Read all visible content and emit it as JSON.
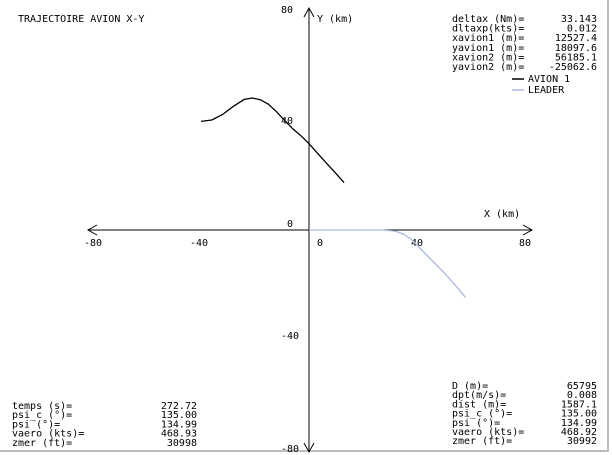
{
  "window": {
    "title": "TRAJECTOIRE AVION X-Y"
  },
  "colors": {
    "background": "#ffffff",
    "axis": "#000000",
    "avion1": "#000000",
    "leader": "#a9b9dd"
  },
  "chart_data": {
    "type": "line",
    "title": "TRAJECTOIRE AVION X-Y",
    "xlabel": "X (km)",
    "ylabel": "Y (km)",
    "xlim": [
      -80,
      80
    ],
    "ylim": [
      -80,
      80
    ],
    "xticks": [
      "-80",
      "-40",
      "0",
      "40",
      "80"
    ],
    "yticks": [
      "80",
      "40",
      "0",
      "-40",
      "-80"
    ],
    "grid": false,
    "legend_position": "top-right",
    "series": [
      {
        "name": "AVION 1",
        "color": "#000000",
        "x": [
          -40,
          -36,
          -32,
          -28,
          -24,
          -21,
          -18,
          -15,
          -12,
          -9,
          -6,
          -3,
          0,
          5,
          10,
          13
        ],
        "y": [
          39.5,
          40,
          42,
          45,
          47.5,
          48,
          47.4,
          45.7,
          43,
          39.8,
          36.8,
          34.3,
          31.4,
          25.9,
          20.5,
          17.2
        ]
      },
      {
        "name": "LEADER",
        "color": "#a9b9dd",
        "x": [
          0,
          10,
          20,
          27,
          32,
          35,
          38,
          41,
          45,
          50,
          55,
          58
        ],
        "y": [
          0,
          0,
          0,
          0,
          -0.4,
          -1.5,
          -3.5,
          -6.5,
          -10.5,
          -15.5,
          -21,
          -24.5
        ]
      }
    ],
    "series_labels": [
      "AVION 1",
      "LEADER"
    ]
  },
  "info_top_right": [
    {
      "label": "deltax (Nm)=",
      "value": "33.143"
    },
    {
      "label": "dltaxp(kts)=",
      "value": "0.012"
    },
    {
      "label": "xavion1 (m)=",
      "value": "12527.4"
    },
    {
      "label": "yavion1 (m)=",
      "value": "18097.6"
    },
    {
      "label": "xavion2 (m)=",
      "value": "56185.1"
    },
    {
      "label": "yavion2 (m)=",
      "value": "-25062.6"
    }
  ],
  "info_bottom_left": [
    {
      "label": "temps (s)=",
      "value": "272.72"
    },
    {
      "label": "psi_c (°)=",
      "value": "135.00"
    },
    {
      "label": "psi (°)=",
      "value": "134.99"
    },
    {
      "label": "vaero (kts)=",
      "value": "468.93"
    },
    {
      "label": "zmer (ft)=",
      "value": "30998"
    }
  ],
  "info_bottom_right": [
    {
      "label": "D (m)=",
      "value": "65795"
    },
    {
      "label": "dpt(m/s)=",
      "value": "0.008"
    },
    {
      "label": "dist (m)=",
      "value": "1587.1"
    },
    {
      "label": "psi_c (°)=",
      "value": "135.00"
    },
    {
      "label": "psi (°)=",
      "value": "134.99"
    },
    {
      "label": "vaero (kts)=",
      "value": "468.92"
    },
    {
      "label": "zmer (ft)=",
      "value": "30992"
    }
  ]
}
